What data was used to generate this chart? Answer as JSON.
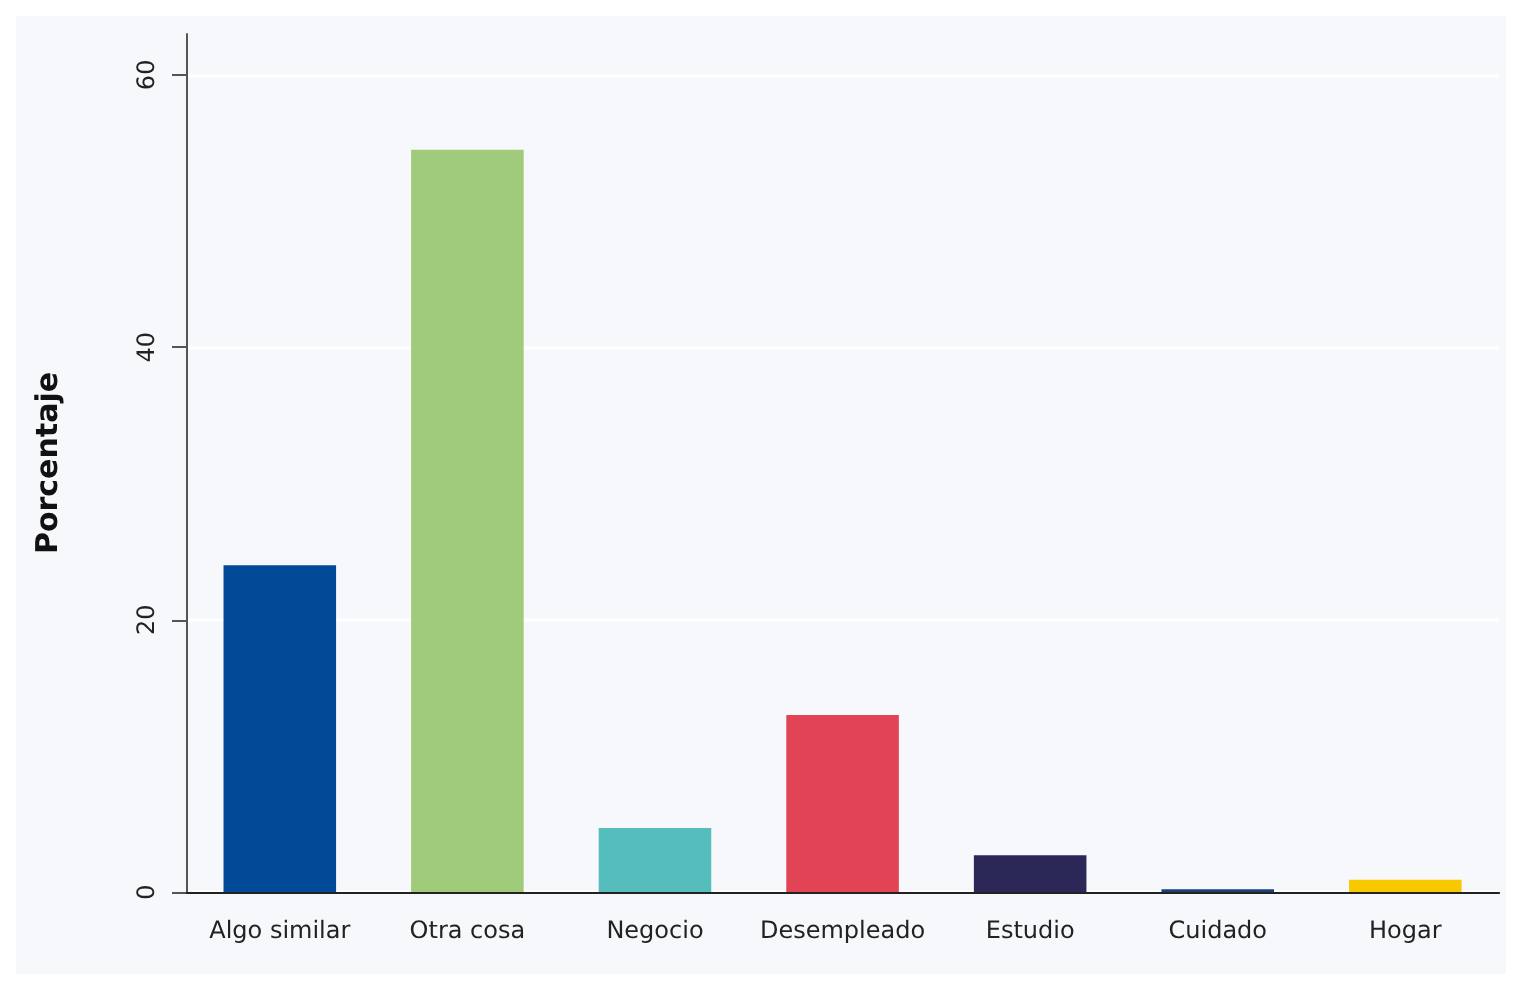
{
  "chart_data": {
    "type": "bar",
    "ylabel": "Porcentaje",
    "categories": [
      "Algo similar",
      "Otra cosa",
      "Negocio",
      "Desempleado",
      "Estudio",
      "Cuidado",
      "Hogar"
    ],
    "values": [
      24,
      54.5,
      4.7,
      13,
      2.7,
      0.2,
      0.9
    ],
    "colors": [
      "#004a98",
      "#a0cb7b",
      "#55bebd",
      "#e34455",
      "#2b2757",
      "#1c3f7e",
      "#f8c800"
    ],
    "ylim": [
      0,
      63
    ],
    "yticks": [
      0,
      20,
      40,
      60
    ],
    "grid": "y"
  }
}
